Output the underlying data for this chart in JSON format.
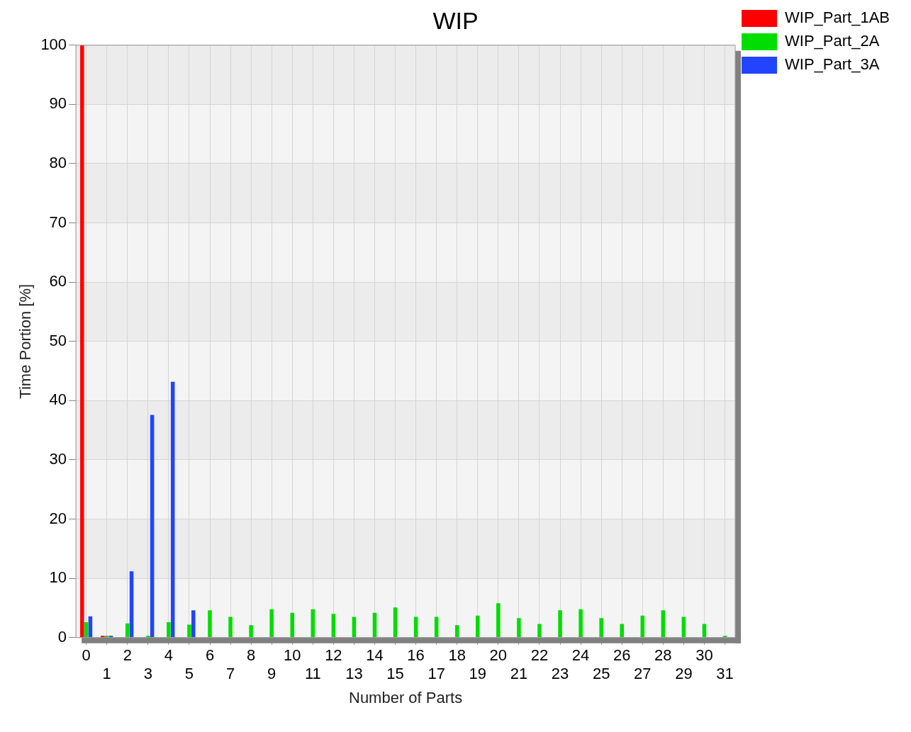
{
  "chart_data": {
    "type": "bar",
    "title": "WIP",
    "xlabel": "Number of Parts",
    "ylabel": "Time Portion [%]",
    "categories": [
      "0",
      "1",
      "2",
      "3",
      "4",
      "5",
      "6",
      "7",
      "8",
      "9",
      "10",
      "11",
      "12",
      "13",
      "14",
      "15",
      "16",
      "17",
      "18",
      "19",
      "20",
      "21",
      "22",
      "23",
      "24",
      "25",
      "26",
      "27",
      "28",
      "29",
      "30",
      "31"
    ],
    "series": [
      {
        "name": "WIP_Part_1AB",
        "color": "#ff0000",
        "values": [
          100,
          0.3,
          null,
          null,
          null,
          null,
          null,
          null,
          null,
          null,
          null,
          null,
          null,
          null,
          null,
          null,
          null,
          null,
          null,
          null,
          null,
          null,
          null,
          null,
          null,
          null,
          null,
          null,
          null,
          null,
          null,
          null
        ]
      },
      {
        "name": "WIP_Part_2A",
        "color": "#00dd00",
        "values": [
          2.6,
          0.3,
          2.4,
          0.3,
          2.6,
          2.2,
          4.6,
          3.5,
          2.1,
          4.8,
          4.2,
          4.8,
          4.0,
          3.5,
          4.2,
          5.1,
          3.5,
          3.5,
          2.1,
          3.7,
          5.8,
          3.3,
          2.3,
          4.6,
          4.8,
          3.3,
          2.3,
          3.7,
          4.6,
          3.5,
          2.3,
          0.3
        ]
      },
      {
        "name": "WIP_Part_3A",
        "color": "#2244ff",
        "values": [
          3.6,
          0.3,
          11.2,
          37.6,
          43.2,
          4.6,
          null,
          null,
          null,
          null,
          null,
          null,
          null,
          null,
          null,
          null,
          null,
          null,
          null,
          null,
          null,
          null,
          null,
          null,
          null,
          null,
          null,
          null,
          null,
          null,
          null,
          null
        ]
      }
    ],
    "ylim": [
      0,
      100
    ],
    "yticks": [
      0,
      10,
      20,
      30,
      40,
      50,
      60,
      70,
      80,
      90,
      100
    ],
    "grid": true,
    "legend": "top right"
  }
}
